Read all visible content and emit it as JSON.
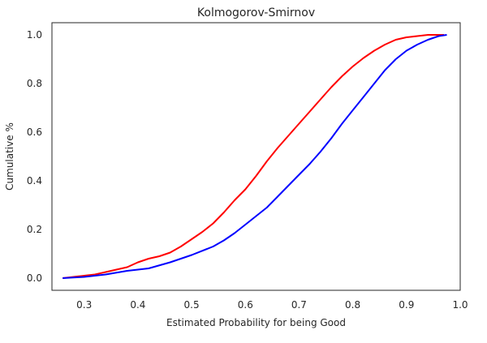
{
  "chart_data": {
    "type": "line",
    "title": "Kolmogorov-Smirnov",
    "xlabel": "Estimated Probability for being Good",
    "ylabel": "Cumulative %",
    "xlim": [
      0.24,
      1.0
    ],
    "ylim": [
      -0.05,
      1.05
    ],
    "xticks": [
      "0.3",
      "0.4",
      "0.5",
      "0.6",
      "0.7",
      "0.8",
      "0.9",
      "1.0"
    ],
    "yticks": [
      "0.0",
      "0.2",
      "0.4",
      "0.6",
      "0.8",
      "1.0"
    ],
    "grid": false,
    "legend": "none",
    "series": [
      {
        "color": "#ff0000",
        "points": [
          [
            0.26,
            0.0
          ],
          [
            0.28,
            0.005
          ],
          [
            0.3,
            0.01
          ],
          [
            0.32,
            0.015
          ],
          [
            0.34,
            0.025
          ],
          [
            0.36,
            0.035
          ],
          [
            0.38,
            0.045
          ],
          [
            0.4,
            0.065
          ],
          [
            0.42,
            0.08
          ],
          [
            0.44,
            0.09
          ],
          [
            0.46,
            0.105
          ],
          [
            0.48,
            0.13
          ],
          [
            0.5,
            0.16
          ],
          [
            0.52,
            0.19
          ],
          [
            0.54,
            0.225
          ],
          [
            0.56,
            0.27
          ],
          [
            0.58,
            0.32
          ],
          [
            0.6,
            0.365
          ],
          [
            0.62,
            0.42
          ],
          [
            0.64,
            0.48
          ],
          [
            0.66,
            0.535
          ],
          [
            0.68,
            0.585
          ],
          [
            0.7,
            0.635
          ],
          [
            0.72,
            0.685
          ],
          [
            0.74,
            0.735
          ],
          [
            0.76,
            0.785
          ],
          [
            0.78,
            0.83
          ],
          [
            0.8,
            0.87
          ],
          [
            0.82,
            0.905
          ],
          [
            0.84,
            0.935
          ],
          [
            0.86,
            0.96
          ],
          [
            0.88,
            0.98
          ],
          [
            0.9,
            0.99
          ],
          [
            0.92,
            0.995
          ],
          [
            0.94,
            1.0
          ],
          [
            0.97,
            1.0
          ]
        ]
      },
      {
        "color": "#0000ff",
        "points": [
          [
            0.26,
            0.0
          ],
          [
            0.3,
            0.005
          ],
          [
            0.34,
            0.015
          ],
          [
            0.38,
            0.03
          ],
          [
            0.42,
            0.04
          ],
          [
            0.46,
            0.065
          ],
          [
            0.5,
            0.095
          ],
          [
            0.54,
            0.13
          ],
          [
            0.56,
            0.155
          ],
          [
            0.58,
            0.185
          ],
          [
            0.6,
            0.22
          ],
          [
            0.62,
            0.255
          ],
          [
            0.64,
            0.29
          ],
          [
            0.66,
            0.335
          ],
          [
            0.68,
            0.38
          ],
          [
            0.7,
            0.425
          ],
          [
            0.72,
            0.47
          ],
          [
            0.74,
            0.52
          ],
          [
            0.76,
            0.575
          ],
          [
            0.78,
            0.635
          ],
          [
            0.8,
            0.69
          ],
          [
            0.82,
            0.745
          ],
          [
            0.84,
            0.8
          ],
          [
            0.86,
            0.855
          ],
          [
            0.88,
            0.9
          ],
          [
            0.9,
            0.935
          ],
          [
            0.92,
            0.96
          ],
          [
            0.94,
            0.98
          ],
          [
            0.96,
            0.995
          ],
          [
            0.975,
            1.0
          ]
        ]
      }
    ]
  }
}
